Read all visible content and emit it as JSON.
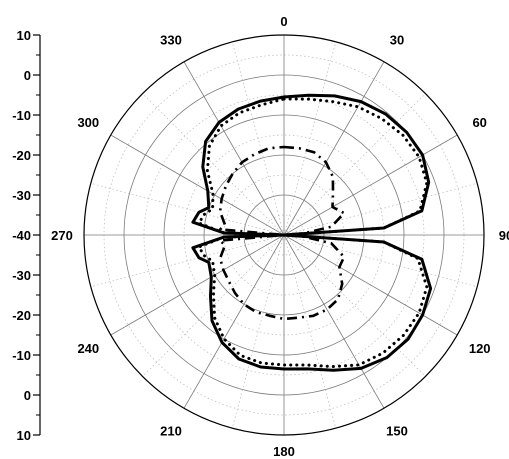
{
  "chart_data": {
    "type": "line",
    "subtype": "polar",
    "angular_axis": {
      "unit": "degrees",
      "direction": "clockwise",
      "zero_at": "top",
      "ticks": [
        0,
        30,
        60,
        90,
        120,
        150,
        180,
        210,
        240,
        270,
        300,
        330
      ],
      "tick_labels": [
        "0",
        "30",
        "60",
        "90",
        "120",
        "150",
        "180",
        "210",
        "240",
        "270",
        "300",
        "330"
      ]
    },
    "radial_axis": {
      "range": [
        -40,
        10
      ],
      "tick_values": [
        10,
        0,
        -10,
        -20,
        -30,
        -40,
        -30,
        -20,
        -10,
        0,
        10
      ],
      "tick_labels": [
        "10",
        "0",
        "-10",
        "-20",
        "-30",
        "-40",
        "-30",
        "-20",
        "-10",
        "0",
        "10"
      ],
      "grid_step": 5
    },
    "grid": true,
    "legend": "none",
    "series": [
      {
        "style": "solid",
        "color": "#000000",
        "points": [
          [
            0,
            -5.5
          ],
          [
            10,
            -4.5
          ],
          [
            20,
            -3
          ],
          [
            30,
            -1.5
          ],
          [
            40,
            -0.5
          ],
          [
            50,
            0
          ],
          [
            60,
            0
          ],
          [
            70,
            -1.5
          ],
          [
            80,
            -5
          ],
          [
            86,
            -15
          ],
          [
            90,
            -40
          ],
          [
            94,
            -15
          ],
          [
            100,
            -5
          ],
          [
            110,
            -1
          ],
          [
            120,
            0
          ],
          [
            130,
            0.5
          ],
          [
            140,
            0
          ],
          [
            150,
            -1.5
          ],
          [
            160,
            -4
          ],
          [
            170,
            -6
          ],
          [
            180,
            -6.5
          ],
          [
            190,
            -6.5
          ],
          [
            200,
            -7
          ],
          [
            210,
            -9
          ],
          [
            220,
            -12
          ],
          [
            230,
            -16
          ],
          [
            240,
            -19
          ],
          [
            250,
            -20
          ],
          [
            255,
            -18
          ],
          [
            262,
            -17
          ],
          [
            268,
            -25
          ],
          [
            270,
            -40
          ],
          [
            272,
            -25
          ],
          [
            278,
            -17
          ],
          [
            285,
            -18
          ],
          [
            290,
            -20
          ],
          [
            300,
            -18
          ],
          [
            310,
            -13.5
          ],
          [
            320,
            -9.5
          ],
          [
            330,
            -7.5
          ],
          [
            340,
            -6.5
          ],
          [
            350,
            -6
          ],
          [
            360,
            -5.5
          ]
        ]
      },
      {
        "style": "dotted",
        "color": "#000000",
        "points": [
          [
            0,
            -6
          ],
          [
            10,
            -5.5
          ],
          [
            20,
            -4.5
          ],
          [
            30,
            -3
          ],
          [
            40,
            -2
          ],
          [
            50,
            -1.2
          ],
          [
            60,
            -1
          ],
          [
            70,
            -2
          ],
          [
            80,
            -5.5
          ],
          [
            86,
            -15
          ],
          [
            90,
            -40
          ],
          [
            94,
            -15
          ],
          [
            100,
            -6
          ],
          [
            110,
            -2
          ],
          [
            120,
            -1
          ],
          [
            130,
            -1
          ],
          [
            140,
            -1.5
          ],
          [
            150,
            -2.5
          ],
          [
            160,
            -5
          ],
          [
            170,
            -7
          ],
          [
            180,
            -7.5
          ],
          [
            190,
            -7.5
          ],
          [
            200,
            -8
          ],
          [
            210,
            -10
          ],
          [
            220,
            -13
          ],
          [
            230,
            -17
          ],
          [
            240,
            -20
          ],
          [
            250,
            -21
          ],
          [
            255,
            -19.5
          ],
          [
            262,
            -18.5
          ],
          [
            268,
            -25
          ],
          [
            270,
            -40
          ],
          [
            272,
            -25
          ],
          [
            278,
            -18.5
          ],
          [
            285,
            -19.5
          ],
          [
            290,
            -21
          ],
          [
            300,
            -19.5
          ],
          [
            310,
            -15
          ],
          [
            320,
            -11
          ],
          [
            330,
            -8.5
          ],
          [
            340,
            -7.5
          ],
          [
            350,
            -7
          ],
          [
            360,
            -6
          ]
        ]
      },
      {
        "style": "dash-dot",
        "color": "#000000",
        "points": [
          [
            0,
            -18
          ],
          [
            10,
            -18
          ],
          [
            20,
            -18
          ],
          [
            30,
            -19
          ],
          [
            40,
            -21
          ],
          [
            50,
            -24
          ],
          [
            60,
            -26
          ],
          [
            70,
            -24
          ],
          [
            80,
            -28
          ],
          [
            85,
            -35
          ],
          [
            90,
            -40
          ],
          [
            95,
            -35
          ],
          [
            100,
            -28
          ],
          [
            110,
            -24
          ],
          [
            120,
            -24
          ],
          [
            130,
            -21
          ],
          [
            140,
            -19
          ],
          [
            150,
            -18.5
          ],
          [
            160,
            -18.5
          ],
          [
            170,
            -19
          ],
          [
            180,
            -19
          ],
          [
            190,
            -19.5
          ],
          [
            200,
            -19.5
          ],
          [
            210,
            -20
          ],
          [
            220,
            -21
          ],
          [
            230,
            -22
          ],
          [
            240,
            -22.5
          ],
          [
            250,
            -23
          ],
          [
            260,
            -25
          ],
          [
            265,
            -24
          ],
          [
            270,
            -40
          ],
          [
            275,
            -24
          ],
          [
            280,
            -25
          ],
          [
            290,
            -23
          ],
          [
            300,
            -22
          ],
          [
            310,
            -21
          ],
          [
            320,
            -20
          ],
          [
            330,
            -19
          ],
          [
            340,
            -18.5
          ],
          [
            350,
            -18
          ],
          [
            360,
            -18
          ]
        ]
      }
    ]
  }
}
